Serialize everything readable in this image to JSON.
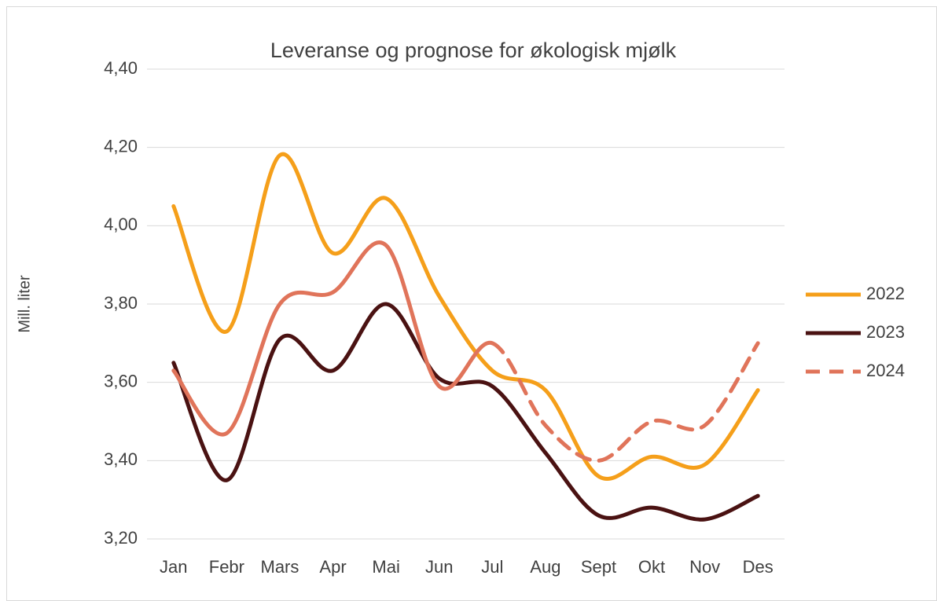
{
  "chart_data": {
    "type": "line",
    "title": "Leveranse og prognose for økologisk mjølk",
    "y_label": "Mill. liter",
    "categories": [
      "Jan",
      "Febr",
      "Mars",
      "Apr",
      "Mai",
      "Jun",
      "Jul",
      "Aug",
      "Sept",
      "Okt",
      "Nov",
      "Des"
    ],
    "series": [
      {
        "name": "2022",
        "color": "#f59f1a",
        "values": [
          4.05,
          3.73,
          4.18,
          3.93,
          4.07,
          3.82,
          3.63,
          3.58,
          3.36,
          3.41,
          3.39,
          3.58
        ]
      },
      {
        "name": "2023",
        "color": "#4a1212",
        "values": [
          3.65,
          3.35,
          3.71,
          3.63,
          3.8,
          3.61,
          3.59,
          3.42,
          3.26,
          3.28,
          3.25,
          3.31
        ]
      },
      {
        "name": "2024",
        "color": "#e0745a",
        "dashed_from": "Jul",
        "values": [
          3.63,
          3.47,
          3.8,
          3.83,
          3.95,
          3.59,
          3.7,
          3.49,
          3.4,
          3.5,
          3.49,
          3.7
        ]
      }
    ],
    "ylim": [
      3.2,
      4.4
    ],
    "yticks": [
      {
        "value": 3.2,
        "label": "3,20"
      },
      {
        "value": 3.4,
        "label": "3,40"
      },
      {
        "value": 3.6,
        "label": "3,60"
      },
      {
        "value": 3.8,
        "label": "3,80"
      },
      {
        "value": 4.0,
        "label": "4,00"
      },
      {
        "value": 4.2,
        "label": "4,20"
      },
      {
        "value": 4.4,
        "label": "4,40"
      }
    ],
    "grid": true,
    "smooth": true,
    "legend": "right"
  }
}
